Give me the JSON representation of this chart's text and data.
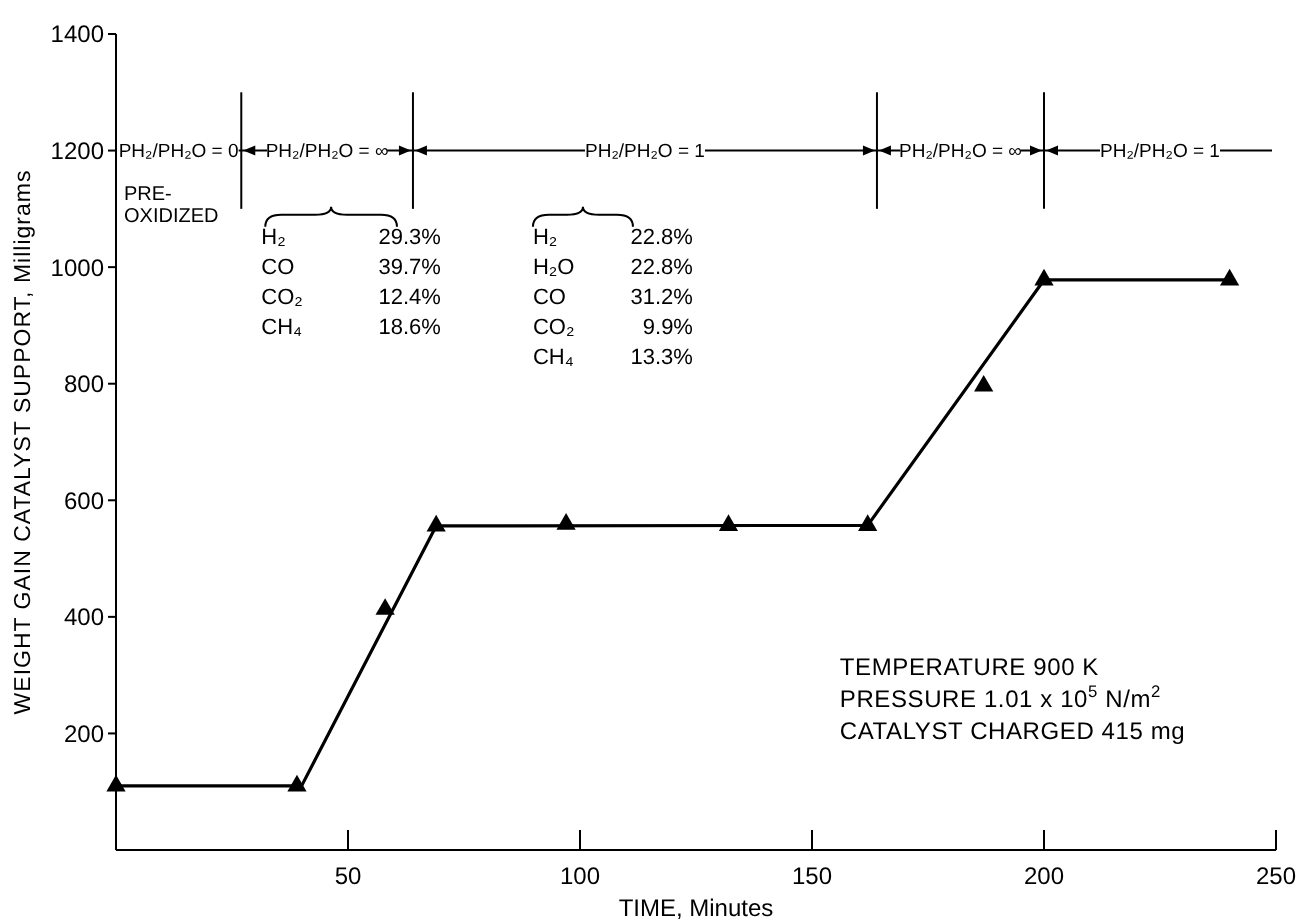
{
  "chart_data": {
    "type": "line",
    "xlabel": "TIME, Minutes",
    "ylabel": "WEIGHT GAIN CATALYST SUPPORT, Milligrams",
    "xlim": [
      0,
      250
    ],
    "xticks": [
      50,
      100,
      150,
      200,
      250
    ],
    "ylim": [
      0,
      1400
    ],
    "yticks": [
      200,
      400,
      600,
      800,
      1000,
      1200,
      1400
    ],
    "series": [
      {
        "color": "#000000",
        "marker": "none",
        "x": [
          0,
          40,
          69,
          162,
          200,
          240
        ],
        "values": [
          110,
          110,
          556,
          557,
          978,
          978
        ]
      },
      {
        "type": "scatter",
        "color": "#000000",
        "marker": "triangle",
        "x": [
          0,
          39,
          58,
          69,
          97,
          132,
          162,
          187,
          200,
          240
        ],
        "values": [
          110,
          110,
          413,
          556,
          559,
          557,
          557,
          796,
          978,
          978
        ]
      }
    ],
    "ref_lines": [
      {
        "axis": "x",
        "value": 27,
        "label": null
      },
      {
        "axis": "x",
        "value": 64,
        "label": null
      },
      {
        "axis": "x",
        "value": 164,
        "label": null
      },
      {
        "axis": "x",
        "value": 200,
        "label": null
      }
    ],
    "annotations": [
      "PH₂/PH₂O = 0",
      "PH₂/PH₂O = ∞",
      "PH₂/PH₂O = 1",
      "PH₂/PH₂O = ∞",
      "PH₂/PH₂O = 1",
      "PRE-OXIDIZED",
      "H₂ 29.3%",
      "CO 39.7%",
      "CO₂ 12.4%",
      "CH₄ 18.6%",
      "H₂ 22.8%",
      "H₂O 22.8%",
      "CO 31.2%",
      "CO₂ 9.9%",
      "CH₄ 13.3%",
      "TEMPERATURE 900 K",
      "PRESSURE 1.01 x 10$^{5}$ N/m$^{2}$",
      "CATALYST CHARGED 415 mg"
    ]
  }
}
